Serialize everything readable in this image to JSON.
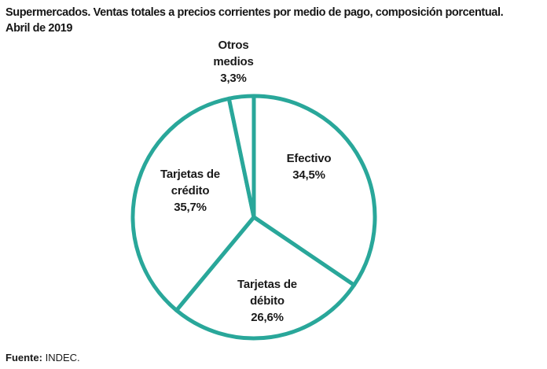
{
  "header": {
    "title_line1": "Supermercados. Ventas totales a precios corrientes por medio de pago, composición porcentual.",
    "title_line2": "Abril de 2019"
  },
  "chart_data": {
    "type": "pie",
    "title": "Supermercados. Ventas totales a precios corrientes por medio de pago, composición porcentual. Abril de 2019",
    "unit": "%",
    "start_angle_deg": 0,
    "direction": "clockwise",
    "legend_position": "none",
    "slices": [
      {
        "name": "Efectivo",
        "value": 34.5,
        "display": "34,5%"
      },
      {
        "name": "Tarjetas de débito",
        "value": 26.6,
        "display": "26,6%"
      },
      {
        "name": "Tarjetas de crédito",
        "value": 35.7,
        "display": "35,7%"
      },
      {
        "name": "Otros medios",
        "value": 3.3,
        "display": "3,3%"
      }
    ],
    "style": {
      "stroke_color": "#29a79a",
      "fill_color": "#ffffff",
      "stroke_width": 5
    },
    "labels": {
      "otros": {
        "lines": [
          "Otros",
          "medios",
          "3,3%"
        ]
      },
      "efectivo": {
        "lines": [
          "Efectivo",
          "34,5%"
        ]
      },
      "credito": {
        "lines": [
          "Tarjetas de",
          "crédito",
          "35,7%"
        ]
      },
      "debito": {
        "lines": [
          "Tarjetas de",
          "débito",
          "26,6%"
        ]
      }
    }
  },
  "footer": {
    "source_label": "Fuente:",
    "source_value": "INDEC."
  }
}
